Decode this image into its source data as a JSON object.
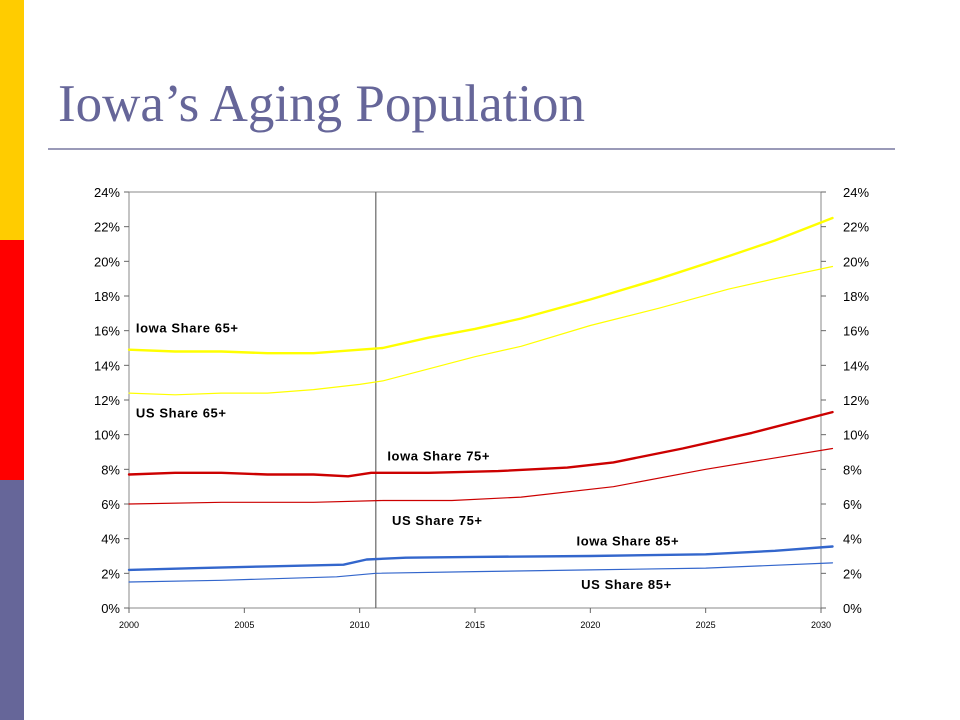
{
  "slide": {
    "title": "Iowa’s Aging Population",
    "accent_colors": [
      "#ffcc00",
      "#ff0000",
      "#666699"
    ]
  },
  "chart_data": {
    "type": "line",
    "title": "",
    "xlabel": "",
    "ylabel": "",
    "xlim": [
      2000,
      2030
    ],
    "ylim": [
      0,
      24
    ],
    "x_ticks": [
      "2000",
      "2005",
      "2010",
      "2015",
      "2020",
      "2025",
      "2030"
    ],
    "y_ticks": [
      "0%",
      "2%",
      "4%",
      "6%",
      "8%",
      "10%",
      "12%",
      "14%",
      "16%",
      "18%",
      "20%",
      "22%",
      "24%"
    ],
    "y_ticks_right": [
      "0%",
      "2%",
      "4%",
      "6%",
      "8%",
      "10%",
      "12%",
      "14%",
      "16%",
      "18%",
      "20%",
      "22%",
      "24%"
    ],
    "reference_line_x": 2010.7,
    "grid": false,
    "series": [
      {
        "name": "Iowa Share 65+",
        "color": "#ffff00",
        "width": "thick",
        "x": [
          2000,
          2002,
          2004,
          2006,
          2008,
          2010,
          2011,
          2013,
          2015,
          2017,
          2020,
          2023,
          2026,
          2028,
          2030.5
        ],
        "y": [
          14.9,
          14.8,
          14.8,
          14.7,
          14.7,
          14.9,
          15.0,
          15.6,
          16.1,
          16.7,
          17.8,
          19.0,
          20.3,
          21.2,
          22.5
        ]
      },
      {
        "name": "US Share 65+",
        "color": "#ffff00",
        "width": "thin",
        "x": [
          2000,
          2002,
          2004,
          2006,
          2008,
          2010,
          2011,
          2013,
          2015,
          2017,
          2020,
          2023,
          2026,
          2028,
          2030.5
        ],
        "y": [
          12.4,
          12.3,
          12.4,
          12.4,
          12.6,
          12.9,
          13.1,
          13.8,
          14.5,
          15.1,
          16.3,
          17.3,
          18.4,
          19.0,
          19.7
        ]
      },
      {
        "name": "Iowa Share 75+",
        "color": "#cc0000",
        "width": "thick",
        "x": [
          2000,
          2002,
          2004,
          2006,
          2008,
          2009.5,
          2010.5,
          2013,
          2016,
          2019,
          2021,
          2024,
          2027,
          2030.5
        ],
        "y": [
          7.7,
          7.8,
          7.8,
          7.7,
          7.7,
          7.6,
          7.8,
          7.8,
          7.9,
          8.1,
          8.4,
          9.2,
          10.1,
          11.3
        ]
      },
      {
        "name": "US Share 75+",
        "color": "#cc0000",
        "width": "thin",
        "x": [
          2000,
          2004,
          2008,
          2011,
          2014,
          2017,
          2021,
          2025,
          2030.5
        ],
        "y": [
          6.0,
          6.1,
          6.1,
          6.2,
          6.2,
          6.4,
          7.0,
          8.0,
          9.2
        ]
      },
      {
        "name": "Iowa Share 85+",
        "color": "#3366cc",
        "width": "thick",
        "x": [
          2000,
          2003,
          2006,
          2009.3,
          2010.3,
          2012,
          2015,
          2020,
          2025,
          2028,
          2030.5
        ],
        "y": [
          2.2,
          2.3,
          2.4,
          2.5,
          2.8,
          2.9,
          2.95,
          3.0,
          3.1,
          3.3,
          3.55
        ]
      },
      {
        "name": "US Share 85+",
        "color": "#3366cc",
        "width": "thin",
        "x": [
          2000,
          2004,
          2009,
          2010.7,
          2015,
          2020,
          2025,
          2030.5
        ],
        "y": [
          1.5,
          1.6,
          1.8,
          2.0,
          2.1,
          2.2,
          2.3,
          2.6
        ]
      }
    ],
    "annotations": [
      {
        "text": "Iowa Share 65+",
        "x": 2000.3,
        "y": 15.9
      },
      {
        "text": "US Share 65+",
        "x": 2000.3,
        "y": 11.0
      },
      {
        "text": "Iowa Share 75+",
        "x": 2011.2,
        "y": 8.5
      },
      {
        "text": "US Share 75+",
        "x": 2011.4,
        "y": 4.8
      },
      {
        "text": "Iowa Share 85+",
        "x": 2019.4,
        "y": 3.6
      },
      {
        "text": "US Share 85+",
        "x": 2019.6,
        "y": 1.1
      }
    ]
  }
}
